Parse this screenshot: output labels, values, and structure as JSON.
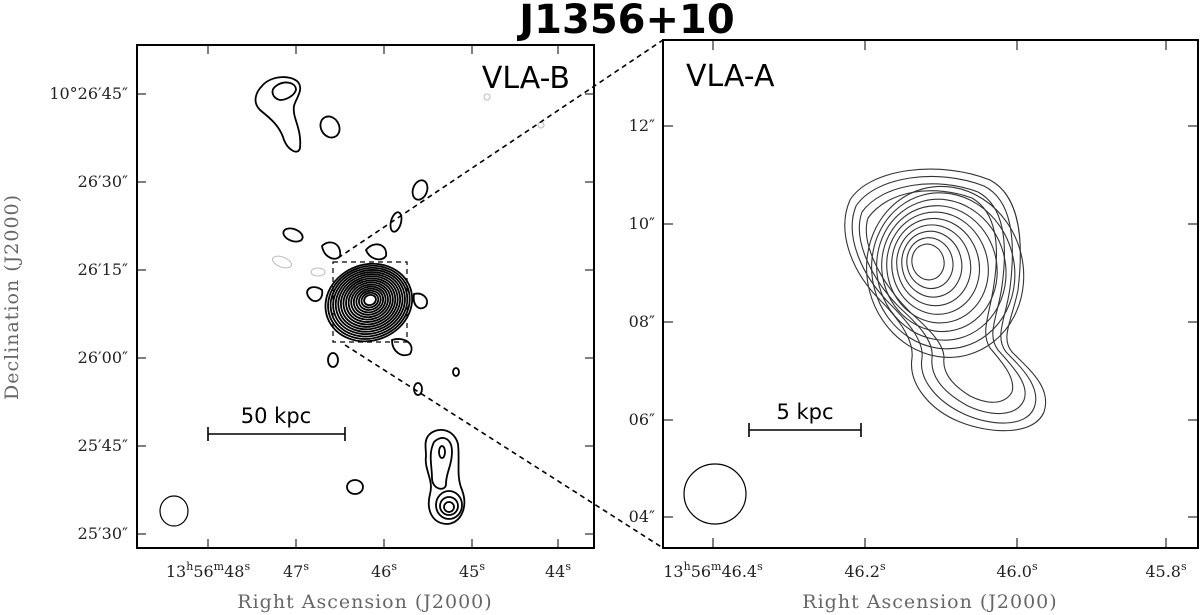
{
  "chart_data": {
    "type": "contour",
    "title": "J1356+10",
    "panels": [
      {
        "label": "VLA-B",
        "xlabel": "Right Ascension (J2000)",
        "ylabel": "Declination (J2000)",
        "x_ticks": [
          {
            "pre": "13",
            "sup1": "h",
            "mid": "56",
            "sup2": "m",
            "main": "48",
            "sup3": "s"
          },
          {
            "pre": "",
            "sup1": "",
            "mid": "",
            "sup2": "",
            "main": "47",
            "sup3": "s"
          },
          {
            "pre": "",
            "sup1": "",
            "mid": "",
            "sup2": "",
            "main": "46",
            "sup3": "s"
          },
          {
            "pre": "",
            "sup1": "",
            "mid": "",
            "sup2": "",
            "main": "45",
            "sup3": "s"
          },
          {
            "pre": "",
            "sup1": "",
            "mid": "",
            "sup2": "",
            "main": "44",
            "sup3": "s"
          }
        ],
        "y_ticks": [
          "10°26′45″",
          "26′30″",
          "26′15″",
          "26′00″",
          "25′45″",
          "25′30″"
        ],
        "scale_bar": "50 kpc"
      },
      {
        "label": "VLA-A",
        "xlabel": "Right Ascension (J2000)",
        "x_ticks": [
          {
            "pre": "13",
            "sup1": "h",
            "mid": "56",
            "sup2": "m",
            "main": "46.4",
            "sup3": "s"
          },
          {
            "pre": "",
            "sup1": "",
            "mid": "",
            "sup2": "",
            "main": "46.2",
            "sup3": "s"
          },
          {
            "pre": "",
            "sup1": "",
            "mid": "",
            "sup2": "",
            "main": "46.0",
            "sup3": "s"
          },
          {
            "pre": "",
            "sup1": "",
            "mid": "",
            "sup2": "",
            "main": "45.8",
            "sup3": "s"
          }
        ],
        "y_ticks": [
          "12″",
          "10″",
          "08″",
          "06″",
          "04″"
        ],
        "scale_bar": "5 kpc"
      }
    ]
  }
}
